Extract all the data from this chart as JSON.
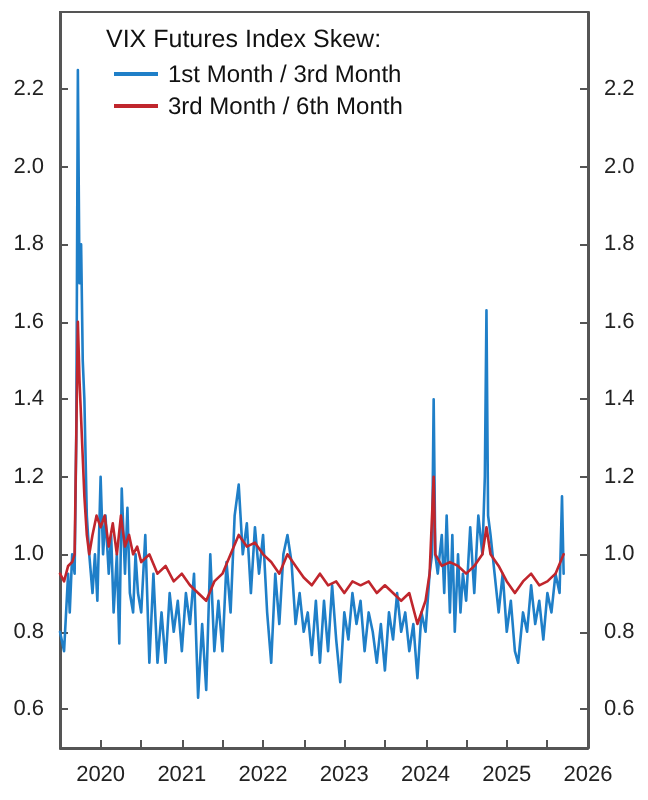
{
  "chart_data": {
    "type": "line",
    "legend_title": "VIX Futures Index Skew:",
    "legend": "top",
    "grid": false,
    "xlim": [
      2020,
      2026.5
    ],
    "xticks": [
      {
        "value": 2020.5,
        "label": "2020"
      },
      {
        "value": 2021,
        "label": null
      },
      {
        "value": 2021.5,
        "label": "2021"
      },
      {
        "value": 2022,
        "label": null
      },
      {
        "value": 2022.5,
        "label": "2022"
      },
      {
        "value": 2023,
        "label": null
      },
      {
        "value": 2023.5,
        "label": "2023"
      },
      {
        "value": 2024,
        "label": null
      },
      {
        "value": 2024.5,
        "label": "2024"
      },
      {
        "value": 2025,
        "label": null
      },
      {
        "value": 2025.5,
        "label": "2025"
      },
      {
        "value": 2026,
        "label": null
      },
      {
        "value": 2026.5,
        "label": "2026"
      }
    ],
    "ylim": [
      0.5,
      2.4
    ],
    "yticks": [
      0.6,
      0.8,
      {
        "value": 1.0,
        "label": "1.0"
      },
      1.2,
      1.4,
      1.6,
      1.8,
      {
        "value": 2.0,
        "label": "2.0"
      },
      2.2
    ],
    "y2lim": [
      0.5,
      2.4
    ],
    "y2ticks": [
      0.6,
      0.8,
      {
        "value": 1.0,
        "label": "1.0"
      },
      1.2,
      1.4,
      1.6,
      1.8,
      {
        "value": 2.0,
        "label": "2.0"
      },
      2.2
    ],
    "series": [
      {
        "name": "1st Month / 3rd Month",
        "color": "#1f7fc8",
        "x": [
          2020.0,
          2020.05,
          2020.1,
          2020.12,
          2020.15,
          2020.18,
          2020.2,
          2020.22,
          2020.24,
          2020.26,
          2020.28,
          2020.3,
          2020.33,
          2020.36,
          2020.4,
          2020.43,
          2020.46,
          2020.5,
          2020.53,
          2020.56,
          2020.6,
          2020.63,
          2020.66,
          2020.7,
          2020.73,
          2020.76,
          2020.8,
          2020.83,
          2020.86,
          2020.9,
          2020.93,
          2020.96,
          2021.0,
          2021.05,
          2021.1,
          2021.15,
          2021.2,
          2021.25,
          2021.3,
          2021.35,
          2021.4,
          2021.45,
          2021.5,
          2021.55,
          2021.6,
          2021.65,
          2021.7,
          2021.75,
          2021.8,
          2021.85,
          2021.9,
          2021.95,
          2022.0,
          2022.05,
          2022.1,
          2022.15,
          2022.2,
          2022.25,
          2022.3,
          2022.35,
          2022.4,
          2022.45,
          2022.5,
          2022.55,
          2022.6,
          2022.65,
          2022.7,
          2022.75,
          2022.8,
          2022.85,
          2022.9,
          2022.95,
          2023.0,
          2023.05,
          2023.1,
          2023.15,
          2023.2,
          2023.25,
          2023.3,
          2023.35,
          2023.4,
          2023.45,
          2023.5,
          2023.55,
          2023.6,
          2023.65,
          2023.7,
          2023.75,
          2023.8,
          2023.85,
          2023.9,
          2023.95,
          2024.0,
          2024.05,
          2024.1,
          2024.15,
          2024.2,
          2024.25,
          2024.3,
          2024.35,
          2024.4,
          2024.45,
          2024.5,
          2024.55,
          2024.58,
          2024.6,
          2024.62,
          2024.65,
          2024.7,
          2024.73,
          2024.76,
          2024.8,
          2024.83,
          2024.86,
          2024.9,
          2024.93,
          2024.96,
          2025.0,
          2025.05,
          2025.1,
          2025.15,
          2025.2,
          2025.23,
          2025.25,
          2025.27,
          2025.3,
          2025.35,
          2025.4,
          2025.45,
          2025.5,
          2025.55,
          2025.6,
          2025.64,
          2025.7,
          2025.75,
          2025.8,
          2025.85,
          2025.9,
          2025.95,
          2026.0,
          2026.05,
          2026.1,
          2026.15,
          2026.18,
          2026.2
        ],
        "values": [
          0.8,
          0.75,
          0.95,
          0.85,
          1.0,
          0.95,
          1.3,
          2.25,
          1.7,
          1.8,
          1.5,
          1.4,
          1.1,
          1.0,
          0.9,
          1.0,
          0.88,
          1.2,
          1.0,
          1.1,
          0.95,
          1.05,
          0.85,
          1.0,
          0.77,
          1.17,
          0.95,
          1.12,
          0.9,
          0.85,
          1.0,
          0.9,
          0.85,
          1.05,
          0.72,
          0.95,
          0.72,
          0.85,
          0.72,
          0.9,
          0.8,
          0.88,
          0.75,
          0.9,
          0.82,
          0.95,
          0.63,
          0.82,
          0.65,
          1.0,
          0.75,
          0.88,
          0.75,
          0.98,
          0.85,
          1.1,
          1.18,
          1.0,
          1.08,
          0.9,
          1.07,
          0.95,
          1.05,
          0.85,
          0.72,
          0.95,
          0.82,
          1.0,
          1.05,
          0.98,
          0.82,
          0.9,
          0.8,
          0.85,
          0.74,
          0.88,
          0.72,
          0.88,
          0.75,
          0.92,
          0.78,
          0.67,
          0.85,
          0.78,
          0.9,
          0.82,
          0.88,
          0.75,
          0.85,
          0.8,
          0.72,
          0.82,
          0.7,
          0.85,
          0.78,
          0.9,
          0.8,
          0.85,
          0.75,
          0.82,
          0.68,
          0.85,
          0.8,
          0.95,
          1.0,
          1.4,
          1.0,
          0.95,
          1.05,
          0.9,
          1.1,
          0.85,
          1.05,
          0.8,
          1.0,
          0.85,
          0.95,
          0.88,
          1.07,
          0.9,
          1.1,
          1.0,
          1.2,
          1.63,
          1.1,
          1.05,
          0.95,
          0.85,
          0.95,
          0.8,
          0.88,
          0.75,
          0.72,
          0.85,
          0.8,
          0.92,
          0.82,
          0.88,
          0.78,
          0.9,
          0.85,
          0.95,
          0.9,
          1.15,
          0.95
        ]
      },
      {
        "name": "3rd Month / 6th Month",
        "color": "#c0262d",
        "x": [
          2020.0,
          2020.05,
          2020.1,
          2020.15,
          2020.18,
          2020.2,
          2020.22,
          2020.24,
          2020.27,
          2020.3,
          2020.33,
          2020.36,
          2020.4,
          2020.45,
          2020.5,
          2020.55,
          2020.6,
          2020.65,
          2020.7,
          2020.75,
          2020.8,
          2020.85,
          2020.9,
          2020.95,
          2021.0,
          2021.1,
          2021.2,
          2021.3,
          2021.4,
          2021.5,
          2021.6,
          2021.7,
          2021.8,
          2021.9,
          2022.0,
          2022.1,
          2022.2,
          2022.3,
          2022.4,
          2022.5,
          2022.6,
          2022.7,
          2022.8,
          2022.9,
          2023.0,
          2023.1,
          2023.2,
          2023.3,
          2023.4,
          2023.5,
          2023.6,
          2023.7,
          2023.8,
          2023.9,
          2024.0,
          2024.1,
          2024.2,
          2024.3,
          2024.4,
          2024.5,
          2024.55,
          2024.6,
          2024.62,
          2024.7,
          2024.8,
          2024.9,
          2025.0,
          2025.1,
          2025.2,
          2025.25,
          2025.3,
          2025.4,
          2025.5,
          2025.6,
          2025.7,
          2025.8,
          2025.9,
          2026.0,
          2026.1,
          2026.2
        ],
        "values": [
          0.95,
          0.93,
          0.97,
          0.98,
          1.0,
          1.3,
          1.6,
          1.45,
          1.3,
          1.15,
          1.05,
          1.0,
          1.05,
          1.1,
          1.07,
          1.1,
          1.02,
          1.08,
          1.0,
          1.1,
          1.02,
          1.05,
          1.0,
          1.02,
          0.98,
          1.0,
          0.95,
          0.97,
          0.93,
          0.95,
          0.92,
          0.9,
          0.88,
          0.93,
          0.95,
          1.0,
          1.05,
          1.02,
          1.03,
          1.0,
          0.98,
          0.95,
          1.0,
          0.97,
          0.94,
          0.92,
          0.95,
          0.92,
          0.93,
          0.9,
          0.93,
          0.92,
          0.93,
          0.9,
          0.92,
          0.9,
          0.88,
          0.9,
          0.82,
          0.88,
          0.95,
          1.2,
          1.0,
          0.97,
          0.98,
          0.97,
          0.95,
          0.97,
          1.0,
          1.07,
          1.0,
          0.97,
          0.93,
          0.9,
          0.93,
          0.95,
          0.92,
          0.93,
          0.95,
          1.0
        ]
      }
    ]
  }
}
